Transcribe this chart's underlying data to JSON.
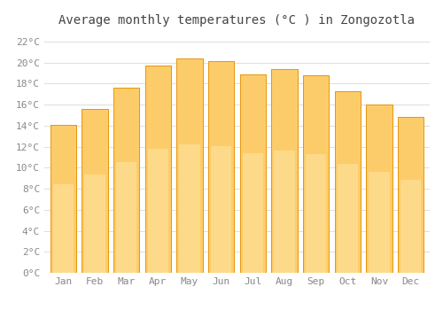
{
  "months": [
    "Jan",
    "Feb",
    "Mar",
    "Apr",
    "May",
    "Jun",
    "Jul",
    "Aug",
    "Sep",
    "Oct",
    "Nov",
    "Dec"
  ],
  "values": [
    14.1,
    15.6,
    17.6,
    19.7,
    20.4,
    20.1,
    18.9,
    19.4,
    18.8,
    17.3,
    16.0,
    14.8
  ],
  "bar_color_top": "#FBB017",
  "bar_color_bottom": "#FDCC6A",
  "bar_edge_color": "#E8960C",
  "title": "Average monthly temperatures (°C ) in Zongozotla",
  "ylim": [
    0,
    23
  ],
  "yticks": [
    0,
    2,
    4,
    6,
    8,
    10,
    12,
    14,
    16,
    18,
    20,
    22
  ],
  "ytick_labels": [
    "0°C",
    "2°C",
    "4°C",
    "6°C",
    "8°C",
    "10°C",
    "12°C",
    "14°C",
    "16°C",
    "18°C",
    "20°C",
    "22°C"
  ],
  "title_fontsize": 10,
  "tick_fontsize": 8,
  "background_color": "#FFFFFF",
  "grid_color": "#DDDDDD",
  "bar_width": 0.82
}
